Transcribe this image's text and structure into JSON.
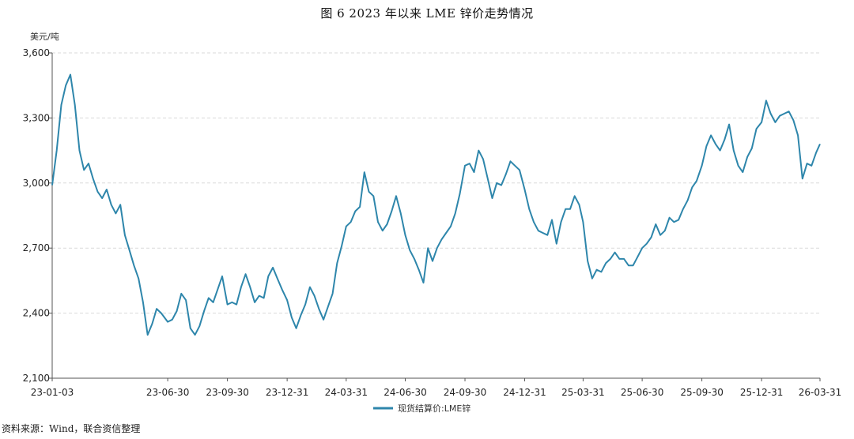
{
  "figure": {
    "title": "图 6   2023 年以来 LME 锌价走势情况",
    "source": "资料来源：Wind，联合资信整理"
  },
  "chart_data": {
    "type": "line",
    "ylabel": "美元/吨",
    "ylim": [
      2100,
      3600
    ],
    "yticks": [
      2100,
      2400,
      2700,
      3000,
      3300,
      3600
    ],
    "ytick_labels": [
      "2,100",
      "2,400",
      "2,700",
      "3,000",
      "3,300",
      "3,600"
    ],
    "xlim": [
      "2023-01-03",
      "2026-03-31"
    ],
    "xticks": [
      "2023-01-03",
      "2023-06-30",
      "2023-09-30",
      "2023-12-31",
      "2024-03-31",
      "2024-06-30",
      "2024-09-30",
      "2024-12-31",
      "2025-03-31",
      "2025-06-30",
      "2025-09-30",
      "2025-12-31",
      "2026-03-31"
    ],
    "xtick_labels": [
      "23-01-03",
      "23-06-30",
      "23-09-30",
      "23-12-31",
      "24-03-31",
      "24-06-30",
      "24-09-30",
      "24-12-31",
      "25-03-31",
      "25-06-30",
      "25-09-30",
      "25-12-31",
      "26-03-31"
    ],
    "grid": "horizontal dashed",
    "legend_position": "bottom-center",
    "line_color": "#2e86ab",
    "series": [
      {
        "name": "现货结算价:LME锌",
        "points": [
          [
            "2023-01-03",
            2990
          ],
          [
            "2023-01-10",
            3150
          ],
          [
            "2023-01-17",
            3360
          ],
          [
            "2023-01-24",
            3450
          ],
          [
            "2023-01-31",
            3500
          ],
          [
            "2023-02-07",
            3360
          ],
          [
            "2023-02-14",
            3150
          ],
          [
            "2023-02-21",
            3060
          ],
          [
            "2023-02-28",
            3090
          ],
          [
            "2023-03-07",
            3020
          ],
          [
            "2023-03-14",
            2960
          ],
          [
            "2023-03-21",
            2930
          ],
          [
            "2023-03-28",
            2970
          ],
          [
            "2023-04-04",
            2900
          ],
          [
            "2023-04-11",
            2860
          ],
          [
            "2023-04-18",
            2900
          ],
          [
            "2023-04-25",
            2760
          ],
          [
            "2023-05-02",
            2690
          ],
          [
            "2023-05-09",
            2620
          ],
          [
            "2023-05-16",
            2560
          ],
          [
            "2023-05-23",
            2450
          ],
          [
            "2023-05-30",
            2300
          ],
          [
            "2023-06-06",
            2350
          ],
          [
            "2023-06-13",
            2420
          ],
          [
            "2023-06-20",
            2400
          ],
          [
            "2023-06-30",
            2360
          ],
          [
            "2023-07-07",
            2370
          ],
          [
            "2023-07-14",
            2410
          ],
          [
            "2023-07-21",
            2490
          ],
          [
            "2023-07-28",
            2460
          ],
          [
            "2023-08-04",
            2330
          ],
          [
            "2023-08-11",
            2300
          ],
          [
            "2023-08-18",
            2340
          ],
          [
            "2023-08-25",
            2410
          ],
          [
            "2023-09-01",
            2470
          ],
          [
            "2023-09-08",
            2450
          ],
          [
            "2023-09-15",
            2510
          ],
          [
            "2023-09-22",
            2570
          ],
          [
            "2023-09-30",
            2440
          ],
          [
            "2023-10-07",
            2450
          ],
          [
            "2023-10-14",
            2440
          ],
          [
            "2023-10-21",
            2520
          ],
          [
            "2023-10-28",
            2580
          ],
          [
            "2023-11-04",
            2520
          ],
          [
            "2023-11-11",
            2450
          ],
          [
            "2023-11-18",
            2480
          ],
          [
            "2023-11-25",
            2470
          ],
          [
            "2023-12-02",
            2570
          ],
          [
            "2023-12-09",
            2610
          ],
          [
            "2023-12-16",
            2560
          ],
          [
            "2023-12-23",
            2510
          ],
          [
            "2023-12-31",
            2460
          ],
          [
            "2024-01-07",
            2380
          ],
          [
            "2024-01-14",
            2330
          ],
          [
            "2024-01-21",
            2390
          ],
          [
            "2024-01-28",
            2440
          ],
          [
            "2024-02-04",
            2520
          ],
          [
            "2024-02-11",
            2480
          ],
          [
            "2024-02-18",
            2420
          ],
          [
            "2024-02-25",
            2370
          ],
          [
            "2024-03-03",
            2430
          ],
          [
            "2024-03-10",
            2490
          ],
          [
            "2024-03-17",
            2630
          ],
          [
            "2024-03-24",
            2710
          ],
          [
            "2024-03-31",
            2800
          ],
          [
            "2024-04-07",
            2820
          ],
          [
            "2024-04-14",
            2870
          ],
          [
            "2024-04-21",
            2890
          ],
          [
            "2024-04-28",
            3050
          ],
          [
            "2024-05-05",
            2960
          ],
          [
            "2024-05-12",
            2940
          ],
          [
            "2024-05-19",
            2820
          ],
          [
            "2024-05-26",
            2780
          ],
          [
            "2024-06-02",
            2810
          ],
          [
            "2024-06-09",
            2870
          ],
          [
            "2024-06-16",
            2940
          ],
          [
            "2024-06-23",
            2860
          ],
          [
            "2024-06-30",
            2760
          ],
          [
            "2024-07-07",
            2690
          ],
          [
            "2024-07-14",
            2650
          ],
          [
            "2024-07-21",
            2600
          ],
          [
            "2024-07-28",
            2540
          ],
          [
            "2024-08-04",
            2700
          ],
          [
            "2024-08-11",
            2640
          ],
          [
            "2024-08-18",
            2700
          ],
          [
            "2024-08-25",
            2740
          ],
          [
            "2024-09-01",
            2770
          ],
          [
            "2024-09-08",
            2800
          ],
          [
            "2024-09-15",
            2860
          ],
          [
            "2024-09-22",
            2950
          ],
          [
            "2024-09-30",
            3080
          ],
          [
            "2024-10-07",
            3090
          ],
          [
            "2024-10-14",
            3050
          ],
          [
            "2024-10-21",
            3150
          ],
          [
            "2024-10-28",
            3110
          ],
          [
            "2024-11-04",
            3020
          ],
          [
            "2024-11-11",
            2930
          ],
          [
            "2024-11-18",
            3000
          ],
          [
            "2024-11-25",
            2990
          ],
          [
            "2024-12-02",
            3040
          ],
          [
            "2024-12-09",
            3100
          ],
          [
            "2024-12-16",
            3080
          ],
          [
            "2024-12-23",
            3060
          ],
          [
            "2024-12-31",
            2970
          ],
          [
            "2025-01-07",
            2880
          ],
          [
            "2025-01-14",
            2820
          ],
          [
            "2025-01-21",
            2780
          ],
          [
            "2025-01-28",
            2770
          ],
          [
            "2025-02-04",
            2760
          ],
          [
            "2025-02-11",
            2830
          ],
          [
            "2025-02-18",
            2720
          ],
          [
            "2025-02-25",
            2820
          ],
          [
            "2025-03-04",
            2880
          ],
          [
            "2025-03-11",
            2880
          ],
          [
            "2025-03-18",
            2940
          ],
          [
            "2025-03-25",
            2900
          ],
          [
            "2025-03-31",
            2820
          ],
          [
            "2025-04-07",
            2640
          ],
          [
            "2025-04-14",
            2560
          ],
          [
            "2025-04-21",
            2600
          ],
          [
            "2025-04-28",
            2590
          ],
          [
            "2025-05-05",
            2630
          ],
          [
            "2025-05-12",
            2650
          ],
          [
            "2025-05-19",
            2680
          ],
          [
            "2025-05-26",
            2650
          ],
          [
            "2025-06-02",
            2650
          ],
          [
            "2025-06-09",
            2620
          ],
          [
            "2025-06-16",
            2620
          ],
          [
            "2025-06-23",
            2660
          ],
          [
            "2025-06-30",
            2700
          ],
          [
            "2025-07-07",
            2720
          ],
          [
            "2025-07-14",
            2750
          ],
          [
            "2025-07-21",
            2810
          ],
          [
            "2025-07-28",
            2760
          ],
          [
            "2025-08-04",
            2780
          ],
          [
            "2025-08-11",
            2840
          ],
          [
            "2025-08-18",
            2820
          ],
          [
            "2025-08-25",
            2830
          ],
          [
            "2025-09-01",
            2880
          ],
          [
            "2025-09-08",
            2920
          ],
          [
            "2025-09-15",
            2980
          ],
          [
            "2025-09-22",
            3010
          ],
          [
            "2025-09-30",
            3080
          ],
          [
            "2025-10-07",
            3170
          ],
          [
            "2025-10-14",
            3220
          ],
          [
            "2025-10-21",
            3180
          ],
          [
            "2025-10-28",
            3150
          ],
          [
            "2025-11-04",
            3200
          ],
          [
            "2025-11-11",
            3270
          ],
          [
            "2025-11-18",
            3150
          ],
          [
            "2025-11-25",
            3080
          ],
          [
            "2025-12-02",
            3050
          ],
          [
            "2025-12-09",
            3120
          ],
          [
            "2025-12-16",
            3160
          ],
          [
            "2025-12-23",
            3250
          ],
          [
            "2025-12-31",
            3280
          ],
          [
            "2026-01-07",
            3380
          ],
          [
            "2026-01-14",
            3320
          ],
          [
            "2026-01-21",
            3280
          ],
          [
            "2026-01-28",
            3310
          ],
          [
            "2026-02-04",
            3320
          ],
          [
            "2026-02-11",
            3330
          ],
          [
            "2026-02-18",
            3290
          ],
          [
            "2026-02-25",
            3220
          ],
          [
            "2026-03-04",
            3020
          ],
          [
            "2026-03-11",
            3090
          ],
          [
            "2026-03-18",
            3080
          ],
          [
            "2026-03-25",
            3140
          ],
          [
            "2026-03-31",
            3180
          ]
        ]
      }
    ]
  }
}
